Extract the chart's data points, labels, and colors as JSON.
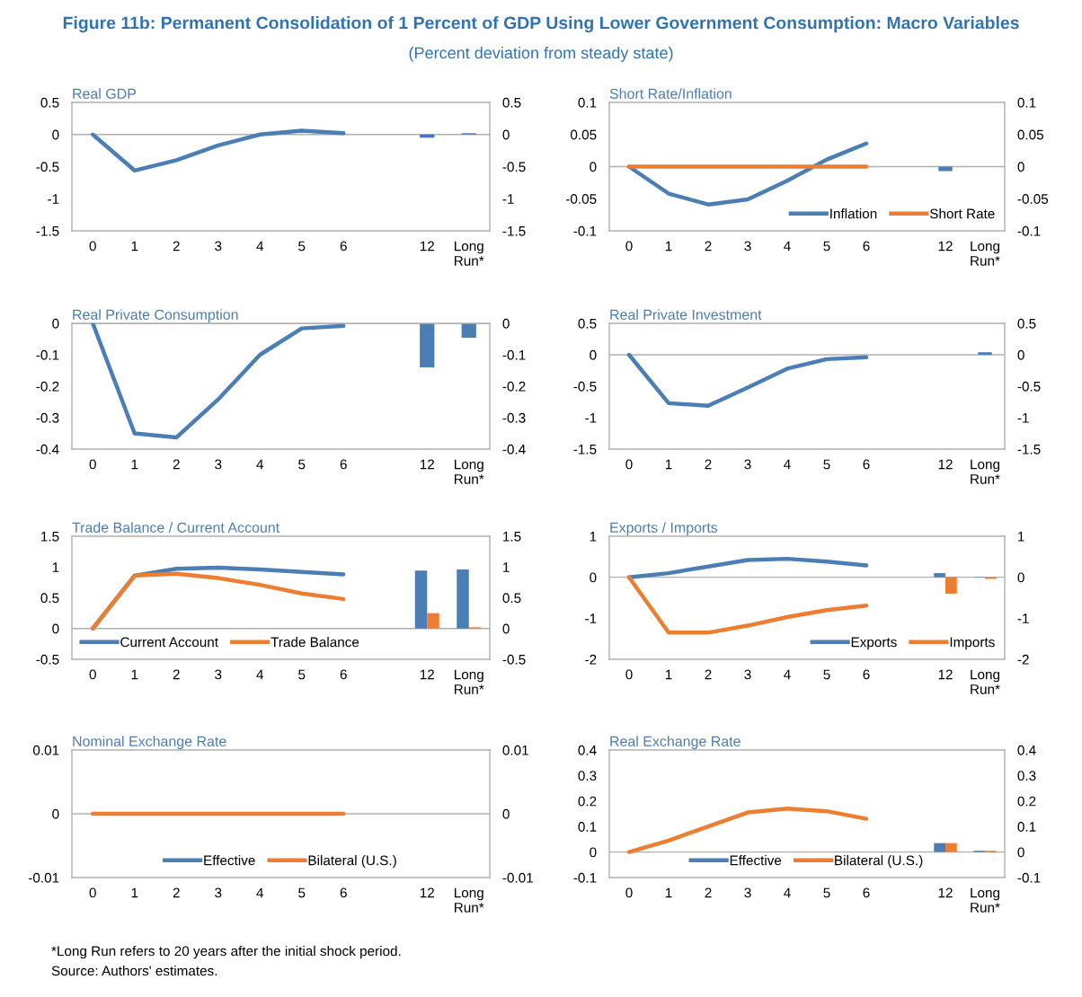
{
  "chart_data": [
    {
      "type": "other",
      "title": "Figure 11b: Permanent Consolidation of 1 Percent of GDP Using Lower Government Consumption: Macro Variables",
      "subtitle": "(Percent deviation from steady state)"
    },
    {
      "type": "line",
      "title": "Real GDP",
      "categories": [
        "0",
        "1",
        "2",
        "3",
        "4",
        "5",
        "6",
        null,
        "12",
        "Long Run*"
      ],
      "series": [
        {
          "type": "line",
          "color": "#4a7eb4",
          "values": [
            0,
            -0.56,
            -0.4,
            -0.17,
            0,
            0.06,
            0.02,
            null,
            null,
            null
          ]
        },
        {
          "type": "bar",
          "color": "#4472c4",
          "values": [
            null,
            null,
            null,
            null,
            null,
            null,
            null,
            null,
            -0.05,
            0.02
          ]
        }
      ],
      "ylim": [
        -1.5,
        0.5
      ],
      "yticks": [
        -1.5,
        -1,
        -0.5,
        0,
        0.5
      ],
      "y2lim": [
        -1.5,
        0.5
      ],
      "y2ticks": [
        -1.5,
        -1,
        -0.5,
        0,
        0.5
      ],
      "ref_lines": [
        {
          "axis": "y",
          "value": 0,
          "color": "#b0b0b0"
        }
      ]
    },
    {
      "type": "line",
      "title": "Short Rate/Inflation",
      "categories": [
        "0",
        "1",
        "2",
        "3",
        "4",
        "5",
        "6",
        null,
        "12",
        "Long Run*"
      ],
      "series": [
        {
          "name": "Inflation",
          "type": "line",
          "color": "#4a7eb4",
          "values": [
            0,
            -0.042,
            -0.059,
            -0.051,
            -0.022,
            0.011,
            0.036,
            null,
            null,
            null
          ]
        },
        {
          "name": "Short Rate",
          "type": "line",
          "color": "#ed7d31",
          "values": [
            0,
            0,
            0,
            0,
            0,
            0,
            0,
            null,
            null,
            null
          ]
        },
        {
          "type": "bar",
          "color": "#4a7eb4",
          "values": [
            null,
            null,
            null,
            null,
            null,
            null,
            null,
            null,
            -0.007,
            null
          ]
        }
      ],
      "ylim": [
        -0.1,
        0.1
      ],
      "yticks": [
        -0.1,
        -0.05,
        0,
        0.05,
        0.1
      ],
      "y2lim": [
        -0.1,
        0.1
      ],
      "y2ticks": [
        -0.1,
        -0.05,
        0,
        0.05,
        0.1
      ],
      "ref_lines": [
        {
          "axis": "y",
          "value": 0,
          "color": "#b0b0b0"
        }
      ],
      "legend": "bottom right"
    },
    {
      "type": "line",
      "title": "Real Private Consumption",
      "categories": [
        "0",
        "1",
        "2",
        "3",
        "4",
        "5",
        "6",
        null,
        "12",
        "Long Run*"
      ],
      "series": [
        {
          "type": "line",
          "color": "#4a7eb4",
          "values": [
            0,
            -0.35,
            -0.363,
            -0.242,
            -0.1,
            -0.016,
            -0.008,
            null,
            null,
            null
          ]
        },
        {
          "type": "bar",
          "color": "#4a7eb4",
          "values": [
            null,
            null,
            null,
            null,
            null,
            null,
            null,
            null,
            -0.14,
            -0.046
          ]
        }
      ],
      "ylim": [
        -0.4,
        0
      ],
      "yticks": [
        -0.4,
        -0.3,
        -0.2,
        -0.1,
        0
      ],
      "y2lim": [
        -0.4,
        0
      ],
      "y2ticks": [
        -0.4,
        -0.3,
        -0.2,
        -0.1,
        0
      ],
      "ref_lines": [
        {
          "axis": "y",
          "value": 0,
          "color": "#b0b0b0"
        }
      ]
    },
    {
      "type": "line",
      "title": "Real Private Investment",
      "categories": [
        "0",
        "1",
        "2",
        "3",
        "4",
        "5",
        "6",
        null,
        "12",
        "Long Run*"
      ],
      "series": [
        {
          "type": "line",
          "color": "#4a7eb4",
          "values": [
            0,
            -0.77,
            -0.81,
            -0.52,
            -0.22,
            -0.07,
            -0.04,
            null,
            null,
            null
          ]
        },
        {
          "type": "bar",
          "color": "#4a7eb4",
          "values": [
            null,
            null,
            null,
            null,
            null,
            null,
            null,
            null,
            null,
            0.04
          ]
        }
      ],
      "ylim": [
        -1.5,
        0.5
      ],
      "yticks": [
        -1.5,
        -1,
        -0.5,
        0,
        0.5
      ],
      "y2lim": [
        -1.5,
        0.5
      ],
      "y2ticks": [
        -1.5,
        -1,
        -0.5,
        0,
        0.5
      ],
      "ref_lines": [
        {
          "axis": "y",
          "value": 0,
          "color": "#b0b0b0"
        }
      ]
    },
    {
      "type": "line",
      "title": "Trade Balance / Current Account",
      "categories": [
        "0",
        "1",
        "2",
        "3",
        "4",
        "5",
        "6",
        null,
        "12",
        "Long Run*"
      ],
      "series": [
        {
          "name": "Current Account",
          "type": "line",
          "color": "#4a7eb4",
          "values": [
            0,
            0.86,
            0.97,
            0.99,
            0.96,
            0.92,
            0.88,
            null,
            null,
            null
          ]
        },
        {
          "name": "Trade Balance",
          "type": "line",
          "color": "#ed7d31",
          "values": [
            0,
            0.86,
            0.89,
            0.82,
            0.71,
            0.57,
            0.48,
            null,
            null,
            null
          ]
        },
        {
          "type": "bar",
          "color": "#4a7eb4",
          "values": [
            null,
            null,
            null,
            null,
            null,
            null,
            null,
            null,
            0.94,
            0.96
          ]
        },
        {
          "type": "bar",
          "color": "#ed7d31",
          "values": [
            null,
            null,
            null,
            null,
            null,
            null,
            null,
            null,
            0.25,
            0.02
          ]
        }
      ],
      "ylim": [
        -0.5,
        1.5
      ],
      "yticks": [
        -0.5,
        0,
        0.5,
        1,
        1.5
      ],
      "y2lim": [
        -0.5,
        1.5
      ],
      "y2ticks": [
        -0.5,
        0,
        0.5,
        1,
        1.5
      ],
      "ref_lines": [
        {
          "axis": "y",
          "value": 0,
          "color": "#b0b0b0"
        }
      ],
      "legend": "bottom left"
    },
    {
      "type": "line",
      "title": "Exports / Imports",
      "categories": [
        "0",
        "1",
        "2",
        "3",
        "4",
        "5",
        "6",
        null,
        "12",
        "Long Run*"
      ],
      "series": [
        {
          "name": "Exports",
          "type": "line",
          "color": "#4a7eb4",
          "values": [
            0,
            0.1,
            0.26,
            0.42,
            0.45,
            0.38,
            0.29,
            null,
            null,
            null
          ]
        },
        {
          "name": "Imports",
          "type": "line",
          "color": "#ed7d31",
          "values": [
            0,
            -1.35,
            -1.35,
            -1.18,
            -0.97,
            -0.8,
            -0.69,
            null,
            null,
            null
          ]
        },
        {
          "type": "bar",
          "color": "#4a7eb4",
          "values": [
            null,
            null,
            null,
            null,
            null,
            null,
            null,
            null,
            0.1,
            0.01
          ]
        },
        {
          "type": "bar",
          "color": "#ed7d31",
          "values": [
            null,
            null,
            null,
            null,
            null,
            null,
            null,
            null,
            -0.4,
            -0.04
          ]
        }
      ],
      "ylim": [
        -2,
        1
      ],
      "yticks": [
        -2,
        -1,
        0,
        1
      ],
      "y2lim": [
        -2,
        1
      ],
      "y2ticks": [
        -2,
        -1,
        0,
        1
      ],
      "ref_lines": [
        {
          "axis": "y",
          "value": 0,
          "color": "#b0b0b0"
        }
      ],
      "legend": "bottom right"
    },
    {
      "type": "line",
      "title": "Nominal Exchange Rate",
      "categories": [
        "0",
        "1",
        "2",
        "3",
        "4",
        "5",
        "6",
        null,
        "12",
        "Long Run*"
      ],
      "series": [
        {
          "name": "Effective",
          "type": "line",
          "color": "#4a7eb4",
          "values": [
            null,
            null,
            null,
            null,
            null,
            null,
            null,
            null,
            null,
            null
          ]
        },
        {
          "name": "Bilateral (U.S.)",
          "type": "line",
          "color": "#ed7d31",
          "values": [
            0,
            0,
            0,
            0,
            0,
            0,
            0,
            null,
            null,
            null
          ]
        }
      ],
      "ylim": [
        -0.01,
        0.01
      ],
      "yticks": [
        -0.01,
        0,
        0.01
      ],
      "y2lim": [
        -0.01,
        0.01
      ],
      "y2ticks": [
        -0.01,
        0,
        0.01
      ],
      "ref_lines": [
        {
          "axis": "y",
          "value": 0,
          "color": "#b0b0b0"
        }
      ],
      "legend": "bottom"
    },
    {
      "type": "line",
      "title": "Real Exchange Rate",
      "categories": [
        "0",
        "1",
        "2",
        "3",
        "4",
        "5",
        "6",
        null,
        "12",
        "Long Run*"
      ],
      "series": [
        {
          "name": "Effective",
          "type": "line",
          "color": "#4a7eb4",
          "values": [
            null,
            null,
            null,
            null,
            null,
            null,
            null,
            null,
            null,
            null
          ]
        },
        {
          "name": "Bilateral (U.S.)",
          "type": "line",
          "color": "#ed7d31",
          "values": [
            0,
            0.045,
            0.1,
            0.155,
            0.17,
            0.16,
            0.13,
            null,
            null,
            null
          ]
        },
        {
          "type": "bar",
          "color": "#4a7eb4",
          "values": [
            null,
            null,
            null,
            null,
            null,
            null,
            null,
            null,
            0.035,
            0.005
          ]
        },
        {
          "type": "bar",
          "color": "#ed7d31",
          "values": [
            null,
            null,
            null,
            null,
            null,
            null,
            null,
            null,
            0.035,
            0.005
          ]
        }
      ],
      "ylim": [
        -0.1,
        0.4
      ],
      "yticks": [
        -0.1,
        0,
        0.1,
        0.2,
        0.3,
        0.4
      ],
      "y2lim": [
        -0.1,
        0.4
      ],
      "y2ticks": [
        -0.1,
        0,
        0.1,
        0.2,
        0.3,
        0.4
      ],
      "ref_lines": [
        {
          "axis": "y",
          "value": 0,
          "color": "#b0b0b0"
        }
      ],
      "legend": "bottom"
    },
    {
      "type": "other",
      "annotations": [
        "*Long Run refers to 20 years after the initial shock period.",
        "Source: Authors' estimates."
      ]
    }
  ]
}
